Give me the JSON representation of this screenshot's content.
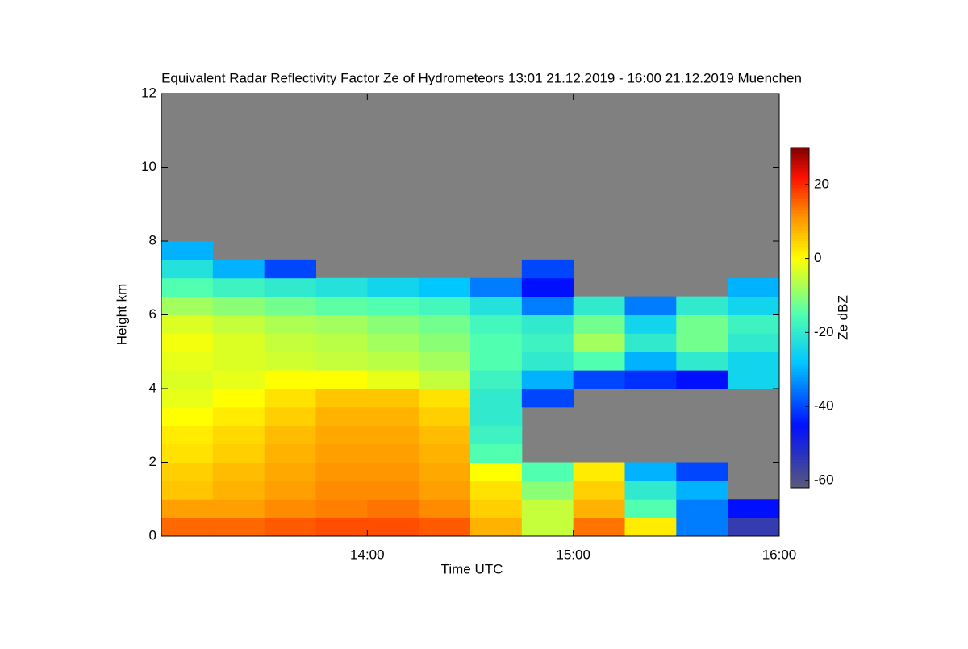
{
  "chart_data": {
    "type": "heatmap",
    "title": "Equivalent Radar Reflectivity Factor Ze of Hydrometeors   13:01 21.12.2019 - 16:00 21.12.2019 Muenchen",
    "x_label": "Time UTC",
    "y_label": "Height km",
    "colorbar_label": "Ze dBZ",
    "background": "#808080",
    "xlim": [
      13,
      16
    ],
    "xticks": [
      {
        "value": 14,
        "label": "14:00"
      },
      {
        "value": 15,
        "label": "15:00"
      },
      {
        "value": 16,
        "label": "16:00"
      }
    ],
    "ylim": [
      0,
      12
    ],
    "yticks": [
      0,
      2,
      4,
      6,
      8,
      10,
      12
    ],
    "zlim": [
      -62,
      30
    ],
    "zticks": [
      -60,
      -40,
      -20,
      0,
      20
    ],
    "colorscale": [
      [
        -62,
        "#5a5a78"
      ],
      [
        -45,
        "#0010ff"
      ],
      [
        -28,
        "#00c8ff"
      ],
      [
        -15,
        "#50ffb0"
      ],
      [
        0,
        "#ffff00"
      ],
      [
        12,
        "#ff8c00"
      ],
      [
        22,
        "#ff1000"
      ],
      [
        30,
        "#800000"
      ]
    ],
    "x_bins": [
      13,
      13.25,
      13.5,
      13.75,
      14,
      14.25,
      14.5,
      14.75,
      15,
      15.25,
      15.5,
      15.75,
      16
    ],
    "y_bins": [
      0,
      0.5,
      1,
      1.5,
      2,
      2.5,
      3,
      3.5,
      4,
      4.5,
      5,
      5.5,
      6,
      6.5,
      7,
      7.5,
      8
    ],
    "z": [
      [
        15,
        15,
        16,
        17,
        17,
        16,
        8,
        -5,
        14,
        2,
        -35,
        -55
      ],
      [
        10,
        10,
        12,
        13,
        14,
        12,
        5,
        -5,
        8,
        -15,
        -35,
        -45
      ],
      [
        6,
        8,
        10,
        12,
        12,
        10,
        3,
        -10,
        5,
        -20,
        -30,
        null
      ],
      [
        5,
        7,
        9,
        11,
        11,
        9,
        0,
        -15,
        2,
        -30,
        -40,
        null
      ],
      [
        3,
        5,
        8,
        10,
        10,
        8,
        -15,
        null,
        null,
        null,
        null,
        null
      ],
      [
        2,
        4,
        7,
        9,
        9,
        7,
        -18,
        null,
        null,
        null,
        null,
        null
      ],
      [
        0,
        2,
        5,
        8,
        8,
        5,
        -20,
        null,
        null,
        null,
        null,
        null
      ],
      [
        -2,
        0,
        3,
        6,
        6,
        3,
        -20,
        -40,
        null,
        null,
        null,
        null
      ],
      [
        -3,
        -2,
        0,
        0,
        -2,
        -5,
        -18,
        -30,
        -40,
        -42,
        -45,
        -25
      ],
      [
        -2,
        -3,
        -4,
        -5,
        -6,
        -8,
        -15,
        -20,
        -15,
        -30,
        -20,
        -25
      ],
      [
        -1,
        -3,
        -5,
        -6,
        -8,
        -10,
        -15,
        -18,
        -8,
        -20,
        -12,
        -20
      ],
      [
        -3,
        -5,
        -7,
        -8,
        -10,
        -12,
        -17,
        -20,
        -12,
        -25,
        -12,
        -18
      ],
      [
        -8,
        -10,
        -12,
        -14,
        -15,
        -17,
        -22,
        -35,
        -20,
        -35,
        -20,
        -25
      ],
      [
        -15,
        -18,
        -20,
        -22,
        -25,
        -28,
        -35,
        -45,
        null,
        null,
        null,
        -30
      ],
      [
        -22,
        -30,
        -40,
        null,
        null,
        null,
        null,
        -40,
        null,
        null,
        null,
        null
      ],
      [
        -30,
        null,
        null,
        null,
        null,
        null,
        null,
        null,
        null,
        null,
        null,
        null
      ]
    ]
  }
}
